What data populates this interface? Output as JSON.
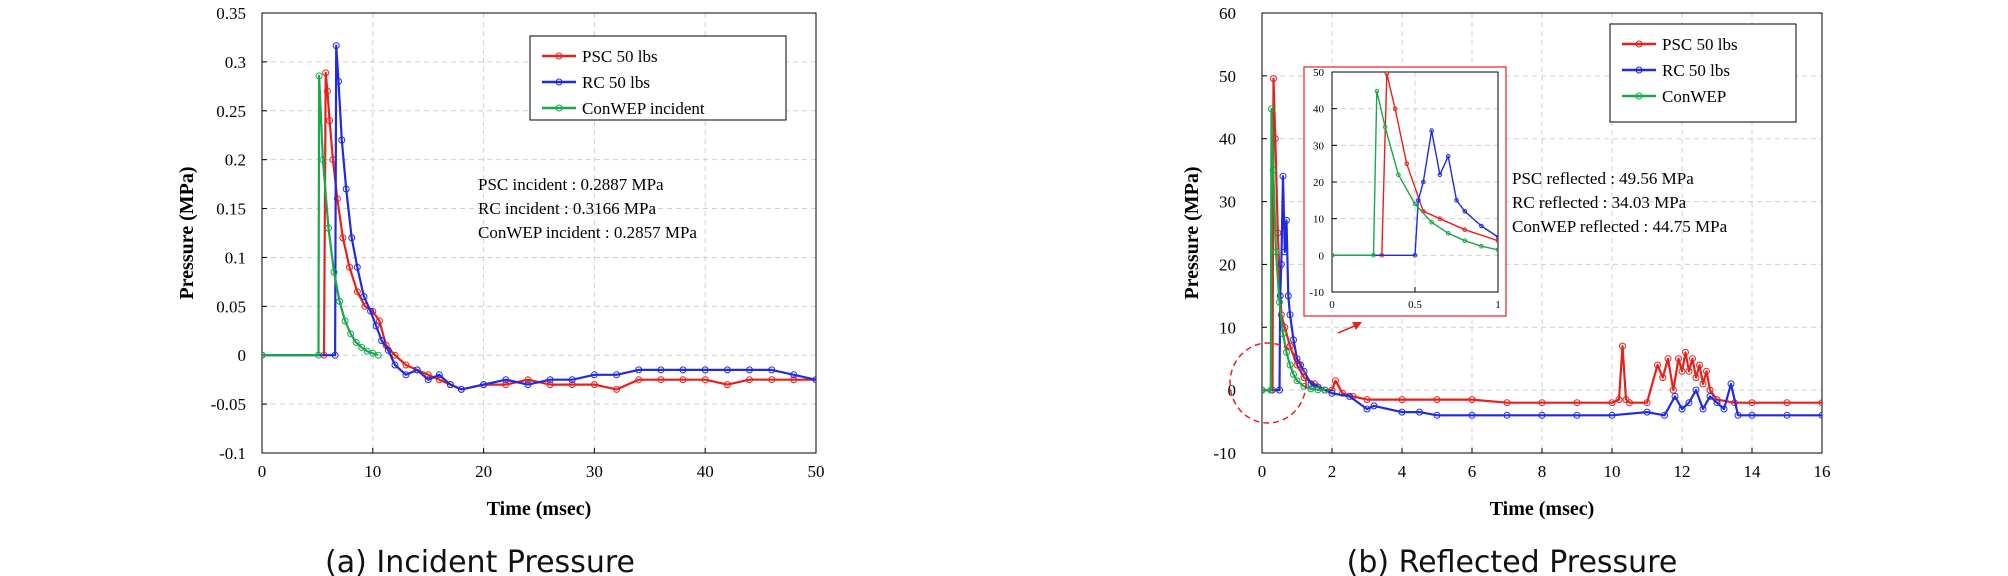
{
  "chart_data": [
    {
      "type": "line",
      "caption": "(a) Incident Pressure",
      "xlabel": "Time (msec)",
      "ylabel": "Pressure (MPa)",
      "xlim": [
        0,
        50
      ],
      "ylim": [
        -0.1,
        0.35
      ],
      "xticks": [
        0,
        10,
        20,
        30,
        40,
        50
      ],
      "yticks": [
        -0.1,
        -0.05,
        0,
        0.05,
        0.1,
        0.15,
        0.2,
        0.25,
        0.3,
        0.35
      ],
      "ytick_labels": [
        "-0.1",
        "-0.05",
        "0",
        "0.05",
        "0.1",
        "0.15",
        "0.2",
        "0.25",
        "0.3",
        "0.35"
      ],
      "grid": true,
      "legend_position": "top-right",
      "annotations": [
        "PSC incident : 0.2887 MPa",
        "RC incident : 0.3166 MPa",
        "ConWEP incident : 0.2857 MPa"
      ],
      "series": [
        {
          "name": "PSC 50 lbs",
          "color": "#e8201c",
          "x": [
            0,
            5.6,
            5.75,
            5.9,
            6.1,
            6.4,
            6.8,
            7.3,
            7.9,
            8.6,
            9.3,
            10.0,
            10.6,
            11.2,
            12.0,
            13.0,
            14.0,
            15.0,
            16.0,
            17.0,
            18.0,
            20.0,
            22.0,
            24.0,
            26.0,
            28.0,
            30.0,
            32.0,
            34.0,
            36.0,
            38.0,
            40.0,
            42.0,
            44.0,
            46.0,
            48.0,
            50.0
          ],
          "y": [
            0,
            0,
            0.2887,
            0.27,
            0.24,
            0.2,
            0.16,
            0.12,
            0.09,
            0.065,
            0.05,
            0.045,
            0.035,
            0.01,
            0.0,
            -0.01,
            -0.015,
            -0.02,
            -0.025,
            -0.03,
            -0.035,
            -0.03,
            -0.03,
            -0.025,
            -0.03,
            -0.03,
            -0.03,
            -0.035,
            -0.025,
            -0.025,
            -0.025,
            -0.025,
            -0.03,
            -0.025,
            -0.025,
            -0.025,
            -0.025
          ]
        },
        {
          "name": "RC 50 lbs",
          "color": "#1f2be0",
          "x": [
            0,
            6.6,
            6.7,
            6.9,
            7.2,
            7.6,
            8.1,
            8.6,
            9.2,
            9.8,
            10.3,
            10.8,
            11.4,
            12.0,
            13.0,
            14.0,
            15.0,
            16.0,
            17.0,
            18.0,
            20.0,
            22.0,
            24.0,
            26.0,
            28.0,
            30.0,
            32.0,
            34.0,
            36.0,
            38.0,
            40.0,
            42.0,
            44.0,
            46.0,
            48.0,
            50.0
          ],
          "y": [
            0,
            0,
            0.3166,
            0.28,
            0.22,
            0.17,
            0.12,
            0.09,
            0.06,
            0.045,
            0.03,
            0.015,
            0.005,
            -0.01,
            -0.02,
            -0.015,
            -0.025,
            -0.02,
            -0.03,
            -0.035,
            -0.03,
            -0.025,
            -0.03,
            -0.025,
            -0.025,
            -0.02,
            -0.02,
            -0.015,
            -0.015,
            -0.015,
            -0.015,
            -0.015,
            -0.015,
            -0.015,
            -0.02,
            -0.025
          ]
        },
        {
          "name": "ConWEP incident",
          "color": "#19a84a",
          "x": [
            0,
            5.1,
            5.15,
            5.5,
            6.0,
            6.5,
            7.0,
            7.5,
            8.0,
            8.5,
            9.0,
            9.5,
            10.0,
            10.5
          ],
          "y": [
            0,
            0,
            0.2857,
            0.2,
            0.13,
            0.085,
            0.055,
            0.035,
            0.022,
            0.013,
            0.008,
            0.004,
            0.002,
            0.0
          ]
        }
      ]
    },
    {
      "type": "line",
      "caption": "(b) Reflected Pressure",
      "xlabel": "Time (msec)",
      "ylabel": "Pressure (MPa)",
      "xlim": [
        0,
        16
      ],
      "ylim": [
        -10,
        60
      ],
      "xticks": [
        0,
        2,
        4,
        6,
        8,
        10,
        12,
        14,
        16
      ],
      "yticks": [
        -10,
        0,
        10,
        20,
        30,
        40,
        50,
        60
      ],
      "grid": true,
      "legend_position": "top-right",
      "annotations": [
        "PSC reflected : 49.56 MPa",
        "RC reflected : 34.03 MPa",
        "ConWEP reflected : 44.75 MPa"
      ],
      "series": [
        {
          "name": "PSC 50 lbs",
          "color": "#e8201c",
          "x": [
            0,
            0.3,
            0.33,
            0.38,
            0.45,
            0.55,
            0.65,
            0.8,
            1.0,
            1.2,
            1.5,
            1.8,
            2.0,
            2.1,
            2.3,
            2.6,
            3.0,
            4.0,
            5.0,
            6.0,
            7.0,
            8.0,
            9.0,
            10.0,
            10.2,
            10.3,
            10.4,
            10.5,
            11.0,
            11.3,
            11.45,
            11.6,
            11.75,
            11.9,
            12.0,
            12.1,
            12.2,
            12.3,
            12.4,
            12.5,
            12.6,
            12.7,
            12.8,
            13.0,
            13.5,
            14.0,
            15.0,
            16.0
          ],
          "y": [
            0,
            0,
            49.56,
            40,
            25,
            12,
            10,
            7,
            4,
            2,
            1,
            0,
            0,
            1.5,
            -0.5,
            -1,
            -1.5,
            -1.5,
            -1.5,
            -1.5,
            -2,
            -2,
            -2,
            -2,
            -1.5,
            7,
            -1.5,
            -2,
            -2,
            4,
            2,
            5,
            0,
            5,
            3,
            6,
            3,
            5,
            2,
            4,
            1,
            3,
            0,
            -1.5,
            -2,
            -2,
            -2,
            -2
          ]
        },
        {
          "name": "RC 50 lbs",
          "color": "#1f2be0",
          "x": [
            0,
            0.5,
            0.52,
            0.55,
            0.6,
            0.65,
            0.7,
            0.75,
            0.8,
            0.9,
            1.0,
            1.1,
            1.2,
            1.4,
            1.6,
            1.8,
            2.0,
            2.5,
            3.0,
            3.2,
            4.0,
            4.5,
            5.0,
            6.0,
            7.0,
            8.0,
            9.0,
            10.0,
            11.0,
            11.5,
            11.8,
            12.0,
            12.2,
            12.4,
            12.6,
            12.8,
            13.0,
            13.2,
            13.4,
            13.6,
            14.0,
            15.0,
            16.0
          ],
          "y": [
            0,
            0,
            15,
            20,
            34.03,
            22,
            27,
            15,
            12,
            8,
            5,
            4,
            3,
            1,
            0.5,
            0,
            -0.5,
            -1,
            -3,
            -2.5,
            -3.5,
            -3.5,
            -4,
            -4,
            -4,
            -4,
            -4,
            -4,
            -3.5,
            -4,
            -1,
            -3,
            -2,
            0,
            -3,
            -1,
            -2,
            -3,
            1,
            -4,
            -4,
            -4,
            -4
          ]
        },
        {
          "name": "ConWEP",
          "color": "#19a84a",
          "x": [
            0,
            0.25,
            0.27,
            0.32,
            0.4,
            0.5,
            0.6,
            0.7,
            0.8,
            0.9,
            1.0,
            1.2,
            1.4,
            1.6,
            1.8
          ],
          "y": [
            0,
            0,
            44.75,
            35,
            22,
            14,
            9,
            6,
            4,
            2.5,
            1.5,
            0.6,
            0.2,
            0.05,
            0
          ]
        }
      ],
      "inset": {
        "xlim": [
          0,
          1
        ],
        "ylim": [
          -10,
          50
        ],
        "xticks": [
          0,
          0.5,
          1
        ],
        "xtick_labels": [
          "0",
          "0.5",
          "1"
        ],
        "yticks": [
          -10,
          0,
          10,
          20,
          30,
          40,
          50
        ]
      }
    }
  ]
}
